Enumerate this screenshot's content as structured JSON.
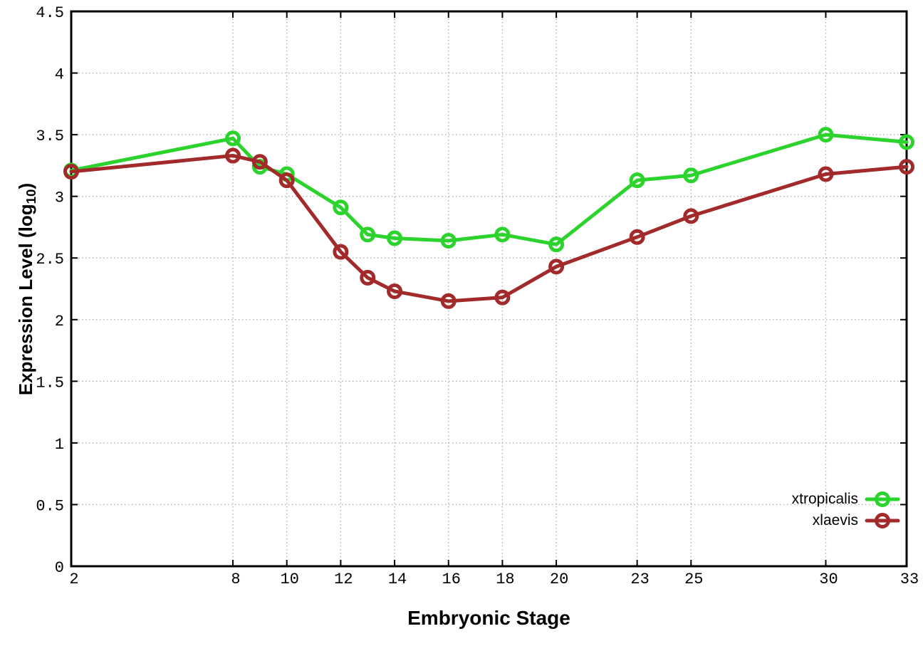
{
  "chart_data": {
    "type": "line",
    "title": "",
    "xlabel": "Embryonic Stage",
    "ylabel_main": "Expression Level (log",
    "ylabel_sub": "10",
    "ylabel_end": ")",
    "xlim": [
      2,
      33
    ],
    "ylim": [
      0,
      4.5
    ],
    "grid": true,
    "legend_position": "inside-bottom-right",
    "x_ticks": [
      {
        "v": 2,
        "label": "2"
      },
      {
        "v": 8,
        "label": "8"
      },
      {
        "v": 10,
        "label": "10"
      },
      {
        "v": 12,
        "label": "12"
      },
      {
        "v": 14,
        "label": "14"
      },
      {
        "v": 16,
        "label": "16"
      },
      {
        "v": 18,
        "label": "18"
      },
      {
        "v": 20,
        "label": "20"
      },
      {
        "v": 23,
        "label": "23"
      },
      {
        "v": 25,
        "label": "25"
      },
      {
        "v": 30,
        "label": "30"
      },
      {
        "v": 33,
        "label": "33"
      }
    ],
    "y_ticks": [
      {
        "v": 0,
        "label": "0"
      },
      {
        "v": 0.5,
        "label": "0.5"
      },
      {
        "v": 1,
        "label": "1"
      },
      {
        "v": 1.5,
        "label": "1.5"
      },
      {
        "v": 2,
        "label": "2"
      },
      {
        "v": 2.5,
        "label": "2.5"
      },
      {
        "v": 3,
        "label": "3"
      },
      {
        "v": 3.5,
        "label": "3.5"
      },
      {
        "v": 4,
        "label": "4"
      },
      {
        "v": 4.5,
        "label": "4.5"
      }
    ],
    "x": [
      2,
      8,
      9,
      10,
      12,
      13,
      14,
      16,
      18,
      20,
      23,
      25,
      30,
      33
    ],
    "series": [
      {
        "name": "xtropicalis",
        "color": "#2cd32c",
        "marker": "open-circle",
        "values": [
          3.21,
          3.47,
          3.24,
          3.18,
          2.91,
          2.69,
          2.66,
          2.64,
          2.69,
          2.61,
          3.13,
          3.17,
          3.5,
          3.44
        ]
      },
      {
        "name": "xlaevis",
        "color": "#a32a2a",
        "marker": "open-circle",
        "values": [
          3.2,
          3.33,
          3.28,
          3.13,
          2.55,
          2.34,
          2.23,
          2.15,
          2.18,
          2.43,
          2.67,
          2.84,
          3.18,
          3.24
        ]
      }
    ],
    "colors": {
      "background": "#ffffff",
      "border": "#000000",
      "grid": "#b0b0b0",
      "text": "#000000"
    }
  }
}
